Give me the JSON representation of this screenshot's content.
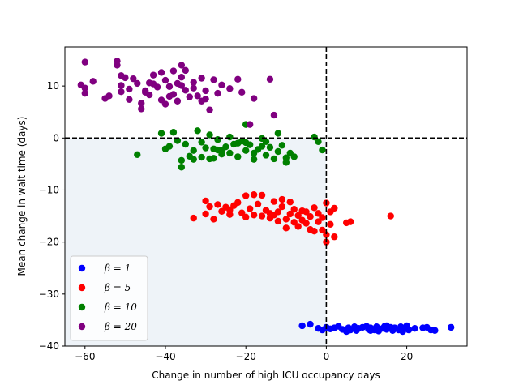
{
  "chart_data": {
    "type": "scatter",
    "title": "",
    "xlabel": "Change in number of high ICU occupancy days",
    "ylabel": "Mean change in wait time (days)",
    "xlim": [
      -65,
      35
    ],
    "ylim": [
      -40,
      17.5
    ],
    "xticks": [
      -60,
      -40,
      -20,
      0,
      20
    ],
    "yticks": [
      -40,
      -30,
      -20,
      -10,
      0,
      10
    ],
    "reference_lines": {
      "x": 0,
      "y": 0,
      "style": "dashed"
    },
    "shaded_region": {
      "x": [
        -65,
        0
      ],
      "y": [
        -40,
        0
      ],
      "color": "#eef3f8"
    },
    "legend_position": "lower-left",
    "series": [
      {
        "name": "β = 1",
        "legend_label": "β = 1",
        "color": "#0000ff",
        "points": [
          [
            -6,
            -36.1
          ],
          [
            -4,
            -35.8
          ],
          [
            -2,
            -36.6
          ],
          [
            -1,
            -36.9
          ],
          [
            0,
            -36.4
          ],
          [
            1,
            -36.7
          ],
          [
            2,
            -36.5
          ],
          [
            3,
            -36.2
          ],
          [
            4,
            -36.8
          ],
          [
            5,
            -37.2
          ],
          [
            5.5,
            -36.5
          ],
          [
            6,
            -36.9
          ],
          [
            7,
            -36.3
          ],
          [
            7.5,
            -37.0
          ],
          [
            8,
            -36.6
          ],
          [
            9,
            -36.4
          ],
          [
            10,
            -36.2
          ],
          [
            10.5,
            -36.8
          ],
          [
            11,
            -36.5
          ],
          [
            12,
            -36.9
          ],
          [
            12.5,
            -36.3
          ],
          [
            13,
            -37.1
          ],
          [
            14,
            -36.6
          ],
          [
            14.5,
            -36.2
          ],
          [
            15,
            -36.8
          ],
          [
            16,
            -36.4
          ],
          [
            16.5,
            -37.0
          ],
          [
            17,
            -36.5
          ],
          [
            18,
            -36.9
          ],
          [
            18.5,
            -36.3
          ],
          [
            19,
            -36.7
          ],
          [
            20,
            -36.1
          ],
          [
            20.5,
            -36.9
          ],
          [
            22,
            -36.6
          ],
          [
            24,
            -36.5
          ],
          [
            25,
            -36.4
          ],
          [
            26,
            -36.9
          ],
          [
            27,
            -37.0
          ],
          [
            31,
            -36.4
          ],
          [
            11,
            -37.0
          ],
          [
            15,
            -36.1
          ],
          [
            19,
            -37.2
          ]
        ]
      },
      {
        "name": "β = 5",
        "legend_label": "β = 5",
        "color": "#ff0000",
        "points": [
          [
            -33,
            -15.4
          ],
          [
            -30,
            -12.1
          ],
          [
            -30,
            -14.6
          ],
          [
            -29,
            -13.2
          ],
          [
            -28,
            -15.6
          ],
          [
            -27,
            -12.8
          ],
          [
            -26,
            -14.1
          ],
          [
            -25,
            -13.3
          ],
          [
            -24,
            -14.7
          ],
          [
            -23,
            -13.0
          ],
          [
            -22,
            -12.4
          ],
          [
            -21,
            -14.4
          ],
          [
            -20,
            -11.1
          ],
          [
            -20,
            -15.2
          ],
          [
            -19,
            -13.6
          ],
          [
            -18,
            -10.9
          ],
          [
            -18,
            -14.8
          ],
          [
            -17,
            -12.7
          ],
          [
            -16,
            -11.0
          ],
          [
            -16,
            -15.0
          ],
          [
            -15,
            -13.9
          ],
          [
            -14,
            -15.4
          ],
          [
            -13,
            -12.2
          ],
          [
            -12,
            -14.2
          ],
          [
            -12,
            -16.0
          ],
          [
            -11,
            -11.8
          ],
          [
            -11,
            -13.2
          ],
          [
            -10,
            -15.6
          ],
          [
            -10,
            -17.3
          ],
          [
            -9,
            -12.3
          ],
          [
            -9,
            -14.6
          ],
          [
            -8,
            -16.2
          ],
          [
            -8,
            -13.7
          ],
          [
            -7,
            -14.9
          ],
          [
            -7,
            -17.0
          ],
          [
            -6,
            -15.8
          ],
          [
            -5,
            -14.2
          ],
          [
            -5,
            -16.4
          ],
          [
            -4,
            -15.1
          ],
          [
            -3,
            -13.4
          ],
          [
            -3,
            -17.9
          ],
          [
            -2,
            -16.1
          ],
          [
            -2,
            -14.5
          ],
          [
            -1,
            -15.3
          ],
          [
            0,
            -12.5
          ],
          [
            0,
            -18.6
          ],
          [
            1,
            -14.2
          ],
          [
            1,
            -16.6
          ],
          [
            2,
            -13.5
          ],
          [
            2,
            -19.0
          ],
          [
            -14,
            -14.5
          ],
          [
            -6,
            -14.0
          ],
          [
            -1,
            -17.7
          ],
          [
            5,
            -16.3
          ],
          [
            6,
            -16.1
          ],
          [
            16,
            -15.0
          ],
          [
            0,
            -20.0
          ],
          [
            -4,
            -17.6
          ],
          [
            -13,
            -14.8
          ],
          [
            -24,
            -13.8
          ]
        ]
      },
      {
        "name": "β = 10",
        "legend_label": "β = 10",
        "color": "#008000",
        "points": [
          [
            -47,
            -3.2
          ],
          [
            -41,
            0.9
          ],
          [
            -40,
            -2.1
          ],
          [
            -39,
            -1.6
          ],
          [
            -38,
            1.1
          ],
          [
            -37,
            -0.5
          ],
          [
            -36,
            -5.6
          ],
          [
            -35,
            -1.2
          ],
          [
            -34,
            -3.5
          ],
          [
            -33,
            -2.4
          ],
          [
            -32,
            1.4
          ],
          [
            -31,
            -0.8
          ],
          [
            -31,
            -3.7
          ],
          [
            -30,
            -1.9
          ],
          [
            -29,
            0.6
          ],
          [
            -29,
            -4.0
          ],
          [
            -28,
            -2.1
          ],
          [
            -27,
            -0.3
          ],
          [
            -26,
            -3.1
          ],
          [
            -25,
            -1.7
          ],
          [
            -24,
            0.2
          ],
          [
            -24,
            -2.9
          ],
          [
            -23,
            -1.2
          ],
          [
            -22,
            -3.6
          ],
          [
            -21,
            -0.6
          ],
          [
            -20,
            -2.4
          ],
          [
            -20,
            2.6
          ],
          [
            -19,
            -1.3
          ],
          [
            -18,
            -4.1
          ],
          [
            -17,
            -2.2
          ],
          [
            -16,
            -0.1
          ],
          [
            -15,
            -3.3
          ],
          [
            -14,
            -1.8
          ],
          [
            -13,
            -4.0
          ],
          [
            -12,
            0.9
          ],
          [
            -12,
            -2.6
          ],
          [
            -11,
            -1.4
          ],
          [
            -10,
            -3.8
          ],
          [
            -10,
            -4.7
          ],
          [
            -9,
            -2.9
          ],
          [
            -8,
            -3.6
          ],
          [
            -3,
            0.2
          ],
          [
            -2,
            -0.7
          ],
          [
            -1,
            -2.3
          ],
          [
            -33,
            -4.1
          ],
          [
            -26,
            -2.4
          ],
          [
            -22,
            -1.0
          ],
          [
            -15,
            -0.7
          ],
          [
            -28,
            -3.9
          ],
          [
            -18,
            -2.9
          ],
          [
            -36,
            -4.3
          ],
          [
            -27,
            -2.3
          ],
          [
            -16,
            -1.6
          ],
          [
            -20,
            -0.9
          ]
        ]
      },
      {
        "name": "β = 20",
        "legend_label": "β = 20",
        "color": "#800080",
        "points": [
          [
            -61,
            10.2
          ],
          [
            -60,
            14.6
          ],
          [
            -60,
            8.6
          ],
          [
            -60,
            9.6
          ],
          [
            -58,
            10.9
          ],
          [
            -55,
            7.6
          ],
          [
            -54,
            8.1
          ],
          [
            -52,
            14.8
          ],
          [
            -52,
            14.0
          ],
          [
            -51,
            12.0
          ],
          [
            -51,
            10.1
          ],
          [
            -51,
            8.9
          ],
          [
            -50,
            11.6
          ],
          [
            -49,
            7.4
          ],
          [
            -49,
            9.4
          ],
          [
            -48,
            11.4
          ],
          [
            -47,
            10.5
          ],
          [
            -46,
            6.7
          ],
          [
            -46,
            5.6
          ],
          [
            -45,
            9.1
          ],
          [
            -44,
            10.6
          ],
          [
            -44,
            8.3
          ],
          [
            -43,
            12.1
          ],
          [
            -42,
            9.8
          ],
          [
            -41,
            12.6
          ],
          [
            -41,
            7.3
          ],
          [
            -40,
            11.1
          ],
          [
            -40,
            6.5
          ],
          [
            -39,
            9.9
          ],
          [
            -38,
            12.9
          ],
          [
            -38,
            8.4
          ],
          [
            -37,
            10.5
          ],
          [
            -37,
            7.1
          ],
          [
            -36,
            11.7
          ],
          [
            -36,
            14.0
          ],
          [
            -35,
            9.2
          ],
          [
            -35,
            13.0
          ],
          [
            -34,
            7.9
          ],
          [
            -33,
            10.7
          ],
          [
            -32,
            8.1
          ],
          [
            -31,
            11.5
          ],
          [
            -30,
            9.1
          ],
          [
            -30,
            7.5
          ],
          [
            -29,
            5.4
          ],
          [
            -28,
            11.2
          ],
          [
            -27,
            8.6
          ],
          [
            -26,
            10.2
          ],
          [
            -24,
            9.5
          ],
          [
            -22,
            11.3
          ],
          [
            -21,
            8.8
          ],
          [
            -19,
            2.6
          ],
          [
            -18,
            7.6
          ],
          [
            -14,
            11.3
          ],
          [
            -13,
            4.4
          ],
          [
            -33,
            9.6
          ],
          [
            -39,
            8.0
          ],
          [
            -45,
            8.8
          ],
          [
            -43,
            10.4
          ],
          [
            -31,
            7.1
          ],
          [
            -36,
            10.1
          ]
        ]
      }
    ]
  }
}
